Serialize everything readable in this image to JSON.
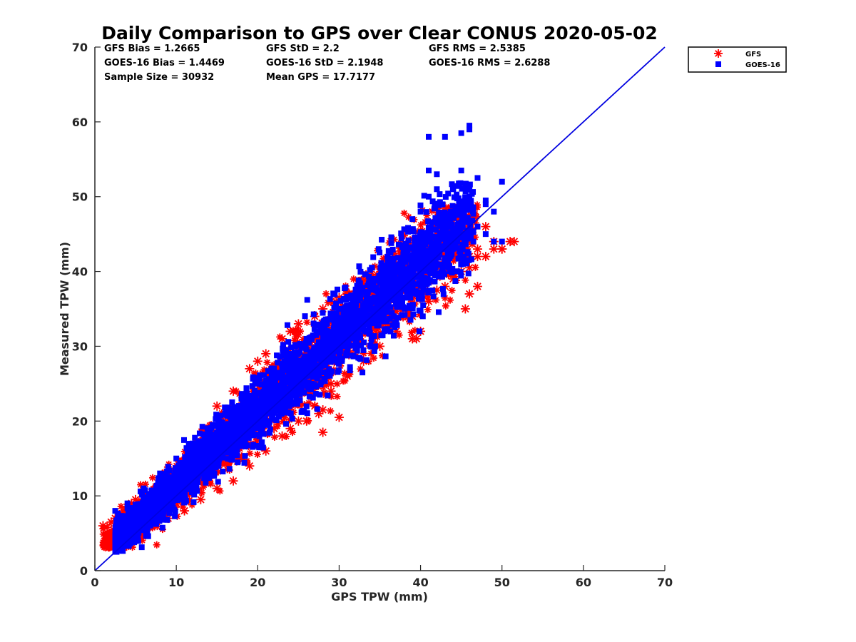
{
  "chart_data": {
    "type": "scatter",
    "title": "Daily Comparison to GPS over Clear CONUS 2020-05-02",
    "xlabel": "GPS TPW (mm)",
    "ylabel": "Measured TPW (mm)",
    "xlim": [
      0,
      70
    ],
    "ylim": [
      0,
      70
    ],
    "xticks": [
      "0",
      "10",
      "20",
      "30",
      "40",
      "50",
      "60",
      "70"
    ],
    "yticks": [
      "0",
      "10",
      "20",
      "30",
      "40",
      "50",
      "60",
      "70"
    ],
    "grid": false,
    "legend_position": "outside-top-right",
    "stats": [
      [
        "GFS Bias = 1.2665",
        "GFS StD = 2.2",
        "GFS RMS = 2.5385"
      ],
      [
        "GOES-16 Bias = 1.4469",
        "GOES-16 StD = 2.1948",
        "GOES-16 RMS = 2.6288"
      ],
      [
        "Sample Size = 30932",
        "Mean GPS = 17.7177",
        ""
      ]
    ],
    "reference_line": {
      "x": [
        0,
        70
      ],
      "y": [
        0,
        70
      ],
      "color": "#0000e0"
    },
    "series": [
      {
        "name": "GFS",
        "marker": "asterisk",
        "color": "#ff0000",
        "x": [
          1,
          1.5,
          2,
          2.5,
          3,
          3.5,
          4,
          4.5,
          5,
          5.5,
          6,
          7,
          8,
          9,
          10,
          11,
          12,
          13,
          14,
          15,
          16,
          17,
          18,
          19,
          20,
          21,
          22,
          23,
          24,
          25,
          26,
          27,
          28,
          29,
          30,
          31,
          32,
          33,
          34,
          35,
          36,
          37,
          38,
          39,
          40,
          41,
          42,
          43,
          44,
          45,
          46,
          47,
          48,
          49,
          50,
          51,
          3,
          5,
          7,
          9,
          11,
          13,
          15,
          17,
          19,
          21,
          23,
          25,
          27,
          29,
          31,
          33,
          35,
          37,
          39,
          41,
          43,
          45,
          47,
          14,
          15,
          17,
          19,
          20,
          21,
          23,
          24,
          25,
          27,
          28,
          29,
          30,
          31,
          33,
          35,
          38,
          40,
          41,
          42,
          44,
          46,
          48,
          49,
          50,
          51.5,
          46,
          45.5,
          39.5,
          47,
          18,
          20,
          22,
          24,
          26,
          27.5,
          28,
          28,
          29,
          30,
          42,
          44,
          46,
          40.5,
          40,
          39
        ],
        "y": [
          6,
          5.8,
          6.5,
          7,
          7.5,
          8,
          8.5,
          9,
          9.5,
          9,
          10,
          10.5,
          11.5,
          12.5,
          13,
          14,
          15,
          16,
          17,
          18,
          19,
          20,
          21,
          22,
          23,
          24,
          25,
          26,
          27,
          28,
          29,
          30,
          31,
          32,
          33,
          34,
          35,
          36,
          37,
          38,
          39,
          40,
          41,
          42,
          43,
          44,
          45,
          44,
          43,
          44,
          42,
          43,
          42,
          43,
          43,
          44,
          4,
          5,
          6,
          7,
          8,
          9.5,
          11,
          12,
          14,
          16,
          18,
          20,
          22,
          24,
          26,
          28,
          30,
          32,
          34,
          36,
          38,
          40,
          42,
          16,
          22,
          24,
          27,
          28,
          29,
          31,
          32,
          33,
          34,
          35,
          36,
          36.5,
          37,
          38,
          39,
          42,
          44,
          45,
          46,
          46,
          47,
          46,
          44,
          43,
          44,
          37,
          35,
          31,
          38,
          18,
          17.5,
          19,
          19,
          20,
          21,
          18.5,
          21.5,
          25,
          20.5,
          37.5,
          39,
          40.5,
          39.5,
          32,
          31
        ]
      },
      {
        "name": "GOES-16",
        "marker": "square",
        "color": "#0000ff",
        "x": [
          3,
          3.5,
          4,
          4.5,
          5,
          5.5,
          6,
          7,
          8,
          9,
          10,
          11,
          12,
          13,
          14,
          15,
          16,
          17,
          18,
          19,
          20,
          21,
          22,
          23,
          24,
          25,
          26,
          27,
          28,
          29,
          30,
          31,
          32,
          33,
          34,
          35,
          36,
          37,
          38,
          39,
          40,
          41,
          42,
          43,
          44,
          45,
          46,
          47,
          48,
          49,
          50,
          4,
          6,
          8,
          10,
          12,
          14,
          16,
          18,
          20,
          22,
          24,
          26,
          28,
          30,
          32,
          34,
          36,
          38,
          2.5,
          4,
          6,
          8,
          10,
          12,
          14,
          16,
          18,
          20,
          22,
          24,
          26,
          28,
          30,
          32,
          34,
          36,
          41,
          43,
          45,
          46,
          46,
          41,
          42,
          45,
          47,
          48,
          49,
          39,
          40,
          41,
          42,
          44,
          46,
          48,
          50,
          40,
          41
        ],
        "y": [
          3,
          3.5,
          4,
          4.5,
          5,
          5.5,
          6,
          7,
          8,
          9,
          10,
          11,
          12,
          13,
          14,
          15,
          16,
          17,
          18,
          19,
          20,
          21,
          22,
          23,
          24,
          25,
          26,
          27,
          28,
          29,
          30,
          31,
          32,
          33,
          34,
          35,
          36,
          37,
          38,
          39,
          40,
          41,
          42,
          43,
          44,
          45,
          45,
          46,
          45,
          44,
          44,
          6,
          8,
          10,
          12,
          14,
          16,
          18,
          20,
          22,
          24,
          26,
          28,
          30,
          32,
          34,
          36,
          38,
          40,
          8,
          9,
          11,
          13,
          15,
          17,
          19,
          21,
          23,
          25,
          27,
          29,
          31,
          33,
          35,
          37,
          39,
          41,
          58,
          58,
          58.5,
          59,
          59.5,
          53.5,
          53,
          53.5,
          52.5,
          49.5,
          48,
          47,
          48,
          50,
          51,
          51,
          50,
          49,
          52,
          43.5,
          41
        ]
      }
    ]
  }
}
